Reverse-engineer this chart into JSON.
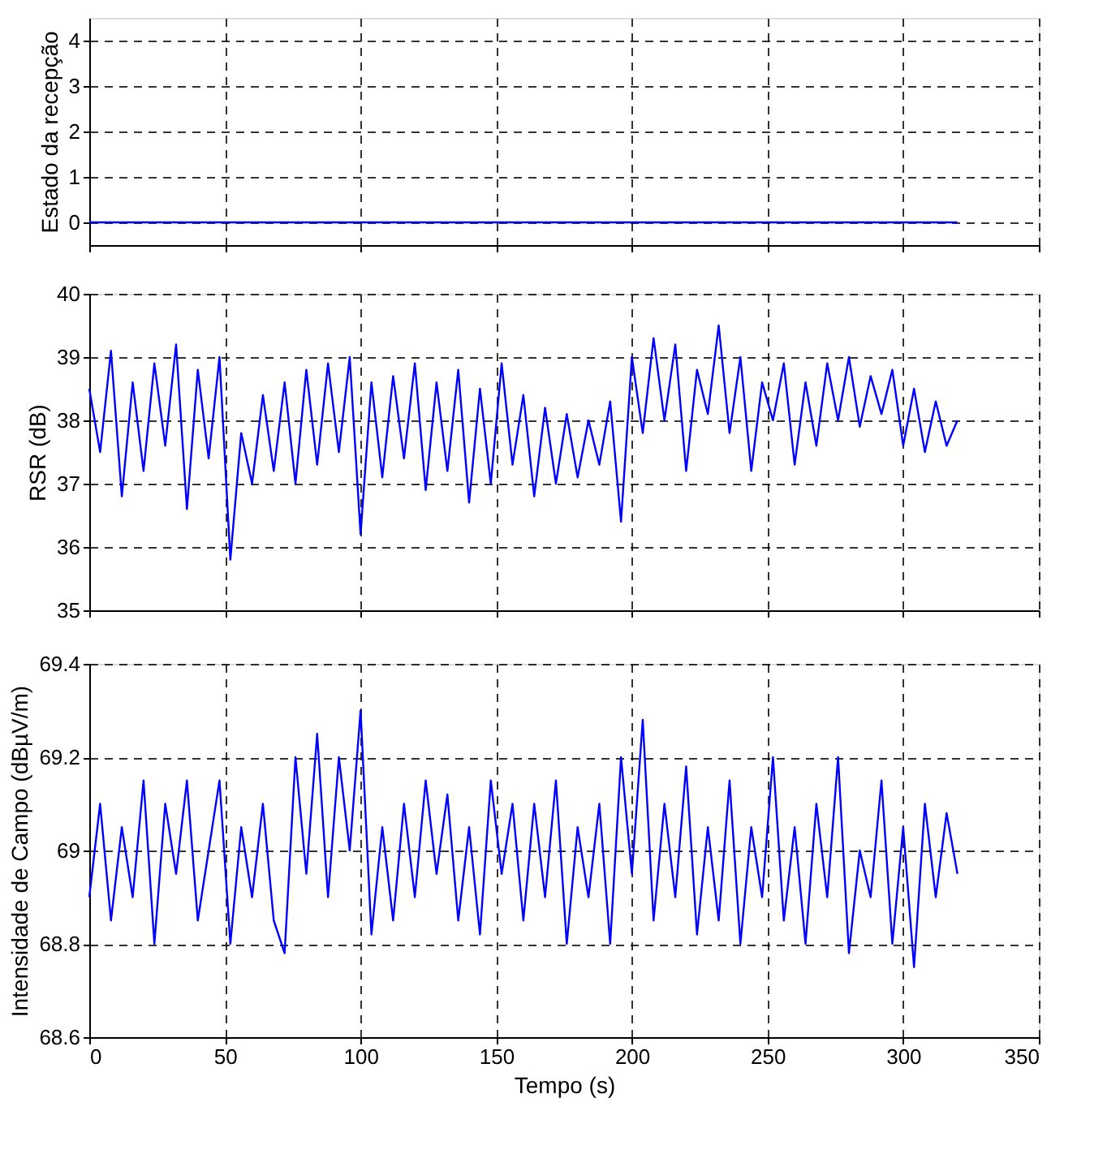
{
  "chart_data": [
    {
      "type": "line",
      "ylabel": "Estado da recepção",
      "xlim": [
        0,
        350
      ],
      "xticks": [
        0,
        50,
        100,
        150,
        200,
        250,
        300,
        350
      ],
      "ylim": [
        -0.5,
        4.5
      ],
      "yticks": [
        0,
        1,
        2,
        3,
        4
      ],
      "grid": true,
      "tick_labels": "y",
      "line_style": "solid",
      "marker": "none",
      "series": [
        {
          "color": "#0000ff",
          "x": [
            0,
            320
          ],
          "values": [
            0,
            0
          ]
        }
      ]
    },
    {
      "type": "line",
      "ylabel": "RSR (dB)",
      "xlim": [
        0,
        350
      ],
      "xticks": [
        0,
        50,
        100,
        150,
        200,
        250,
        300,
        350
      ],
      "ylim": [
        35,
        40
      ],
      "yticks": [
        35,
        36,
        37,
        38,
        39,
        40
      ],
      "grid": true,
      "tick_labels": "y",
      "line_style": "solid",
      "marker": "none",
      "series": [
        {
          "color": "#0000ff",
          "x": [
            0,
            4,
            8,
            12,
            16,
            20,
            24,
            28,
            32,
            36,
            40,
            44,
            48,
            52,
            56,
            60,
            64,
            68,
            72,
            76,
            80,
            84,
            88,
            92,
            96,
            100,
            104,
            108,
            112,
            116,
            120,
            124,
            128,
            132,
            136,
            140,
            144,
            148,
            152,
            156,
            160,
            164,
            168,
            172,
            176,
            180,
            184,
            188,
            192,
            196,
            200,
            204,
            208,
            212,
            216,
            220,
            224,
            228,
            232,
            236,
            240,
            244,
            248,
            252,
            256,
            260,
            264,
            268,
            272,
            276,
            280,
            284,
            288,
            292,
            296,
            300,
            304,
            308,
            312,
            316,
            320
          ],
          "values": [
            38.5,
            37.5,
            39.1,
            36.8,
            38.6,
            37.2,
            38.9,
            37.6,
            39.2,
            36.6,
            38.8,
            37.4,
            39.0,
            35.8,
            37.8,
            37.0,
            38.4,
            37.2,
            38.6,
            37.0,
            38.8,
            37.3,
            38.9,
            37.5,
            39.0,
            36.2,
            38.6,
            37.1,
            38.7,
            37.4,
            38.9,
            36.9,
            38.6,
            37.2,
            38.8,
            36.7,
            38.5,
            37.0,
            38.9,
            37.3,
            38.4,
            36.8,
            38.2,
            37.0,
            38.1,
            37.1,
            38.0,
            37.3,
            38.3,
            36.4,
            39.0,
            37.8,
            39.3,
            38.0,
            39.2,
            37.2,
            38.8,
            38.1,
            39.5,
            37.8,
            39.0,
            37.2,
            38.6,
            38.0,
            38.9,
            37.3,
            38.6,
            37.6,
            38.9,
            38.0,
            39.0,
            37.9,
            38.7,
            38.1,
            38.8,
            37.6,
            38.5,
            37.5,
            38.3,
            37.6,
            38.0
          ]
        }
      ]
    },
    {
      "type": "line",
      "xlabel": "Tempo (s)",
      "ylabel": "Intensidade de Campo (dBµV/m)",
      "xlim": [
        0,
        350
      ],
      "xticks": [
        0,
        50,
        100,
        150,
        200,
        250,
        300,
        350
      ],
      "ylim": [
        68.6,
        69.4
      ],
      "yticks": [
        68.6,
        68.8,
        69,
        69.2,
        69.4
      ],
      "grid": true,
      "line_style": "solid",
      "marker": "none",
      "series": [
        {
          "color": "#0000ff",
          "x": [
            0,
            4,
            8,
            12,
            16,
            20,
            24,
            28,
            32,
            36,
            40,
            44,
            48,
            52,
            56,
            60,
            64,
            68,
            72,
            76,
            80,
            84,
            88,
            92,
            96,
            100,
            104,
            108,
            112,
            116,
            120,
            124,
            128,
            132,
            136,
            140,
            144,
            148,
            152,
            156,
            160,
            164,
            168,
            172,
            176,
            180,
            184,
            188,
            192,
            196,
            200,
            204,
            208,
            212,
            216,
            220,
            224,
            228,
            232,
            236,
            240,
            244,
            248,
            252,
            256,
            260,
            264,
            268,
            272,
            276,
            280,
            284,
            288,
            292,
            296,
            300,
            304,
            308,
            312,
            316,
            320
          ],
          "values": [
            68.9,
            69.1,
            68.85,
            69.05,
            68.9,
            69.15,
            68.8,
            69.1,
            68.95,
            69.15,
            68.85,
            69.0,
            69.15,
            68.8,
            69.05,
            68.9,
            69.1,
            68.85,
            68.78,
            69.2,
            68.95,
            69.25,
            68.9,
            69.2,
            69.0,
            69.3,
            68.82,
            69.05,
            68.85,
            69.1,
            68.9,
            69.15,
            68.95,
            69.12,
            68.85,
            69.05,
            68.82,
            69.15,
            68.95,
            69.1,
            68.85,
            69.1,
            68.9,
            69.15,
            68.8,
            69.05,
            68.9,
            69.1,
            68.8,
            69.2,
            68.95,
            69.28,
            68.85,
            69.1,
            68.9,
            69.18,
            68.82,
            69.05,
            68.85,
            69.15,
            68.8,
            69.05,
            68.9,
            69.2,
            68.85,
            69.05,
            68.8,
            69.1,
            68.9,
            69.2,
            68.78,
            69.0,
            68.9,
            69.15,
            68.8,
            69.05,
            68.75,
            69.1,
            68.9,
            69.08,
            68.95
          ]
        }
      ]
    }
  ]
}
